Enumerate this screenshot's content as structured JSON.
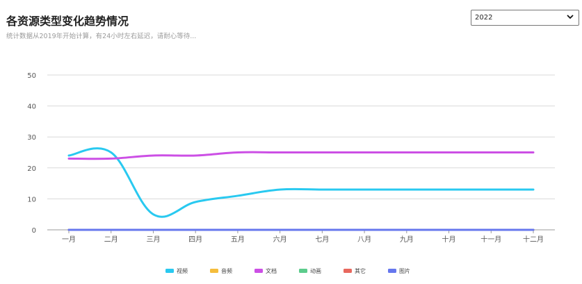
{
  "header": {
    "title": "各资源类型变化趋势情况",
    "subtitle": "统计数据从2019年开始计算，有24小时左右延迟，请耐心等待..."
  },
  "year_select": {
    "selected": "2022",
    "icon": "chevron-down-icon"
  },
  "chart_data": {
    "type": "line",
    "smooth": true,
    "categories": [
      "一月",
      "二月",
      "三月",
      "四月",
      "五月",
      "六月",
      "七月",
      "八月",
      "九月",
      "十月",
      "十一月",
      "十二月"
    ],
    "ylim": [
      0,
      50
    ],
    "yticks": [
      0,
      10,
      20,
      30,
      40,
      50
    ],
    "grid": true,
    "legend_position": "bottom",
    "series": [
      {
        "name": "视频",
        "color": "#29c9f0",
        "values": [
          24,
          25,
          5,
          9,
          11,
          13,
          13,
          13,
          13,
          13,
          13,
          13
        ]
      },
      {
        "name": "音频",
        "color": "#f5bd3c",
        "values": [
          0,
          0,
          0,
          0,
          0,
          0,
          0,
          0,
          0,
          0,
          0,
          0
        ]
      },
      {
        "name": "文档",
        "color": "#cc4fe5",
        "values": [
          23,
          23,
          24,
          24,
          25,
          25,
          25,
          25,
          25,
          25,
          25,
          25
        ]
      },
      {
        "name": "动画",
        "color": "#5ccc8c",
        "values": [
          0,
          0,
          0,
          0,
          0,
          0,
          0,
          0,
          0,
          0,
          0,
          0
        ]
      },
      {
        "name": "其它",
        "color": "#e8685e",
        "values": [
          0,
          0,
          0,
          0,
          0,
          0,
          0,
          0,
          0,
          0,
          0,
          0
        ]
      },
      {
        "name": "图片",
        "color": "#6677ee",
        "values": [
          0,
          0,
          0,
          0,
          0,
          0,
          0,
          0,
          0,
          0,
          0,
          0
        ]
      }
    ]
  }
}
